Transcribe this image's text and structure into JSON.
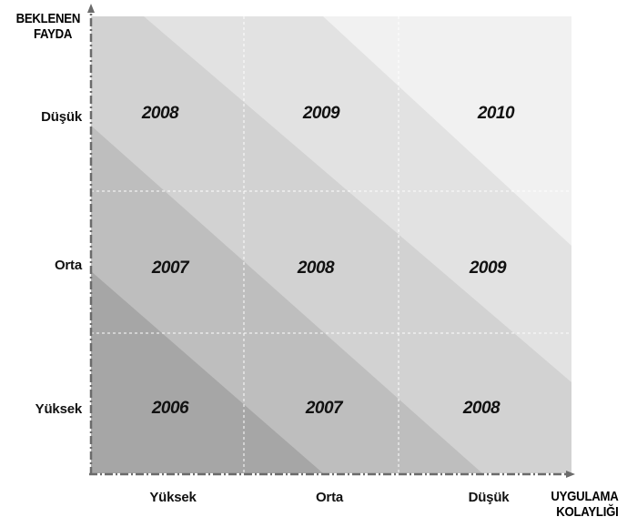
{
  "axes": {
    "y_title": "BEKLENEN FAYDA",
    "x_title": "UYGULAMA KOLAYLIĞI"
  },
  "rows": [
    "Düşük",
    "Orta",
    "Yüksek"
  ],
  "columns": [
    "Yüksek",
    "Orta",
    "Düşük"
  ],
  "cells": [
    [
      "2008",
      "2009",
      "2010"
    ],
    [
      "2007",
      "2008",
      "2009"
    ],
    [
      "2006",
      "2007",
      "2008"
    ]
  ],
  "colors": {
    "band_darkest": "#a6a6a6",
    "band_dark": "#bebebe",
    "band_mid": "#d2d2d2",
    "band_light": "#e2e2e2",
    "band_lightest": "#f1f1f1",
    "axis": "#6b6b6b",
    "grid": "#ffffff"
  }
}
